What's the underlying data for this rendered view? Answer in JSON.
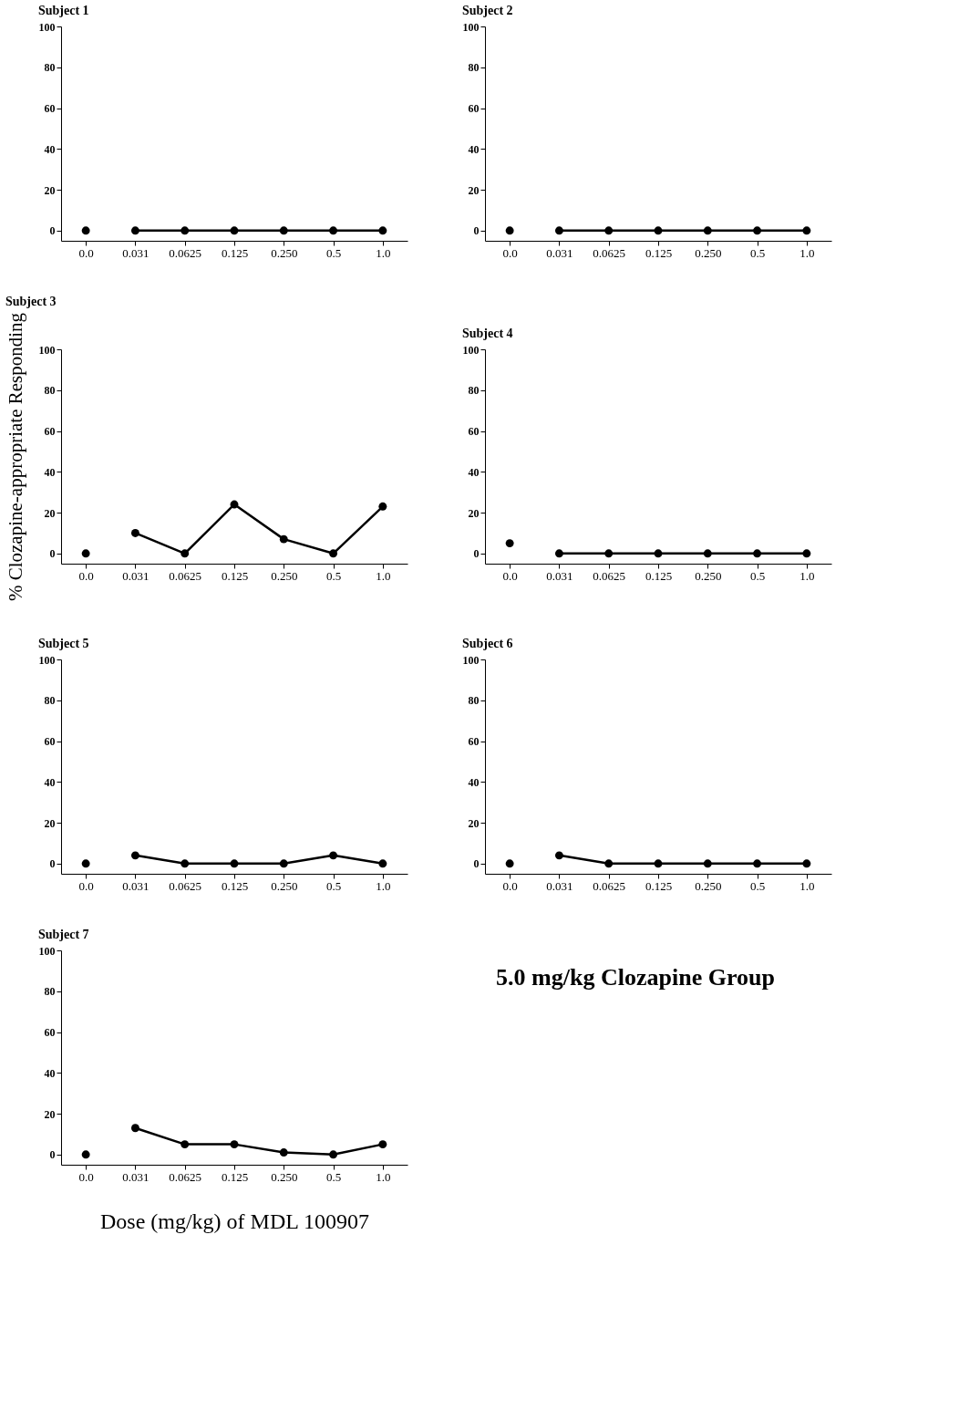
{
  "chart_data": [
    {
      "type": "line",
      "title": "Subject 1",
      "categories": [
        "0.0",
        "0.031",
        "0.0625",
        "0.125",
        "0.250",
        "0.5",
        "1.0"
      ],
      "ylim": [
        -5,
        100
      ],
      "yticks": [
        0,
        20,
        40,
        60,
        80,
        100
      ],
      "grid": false,
      "marker": "circle",
      "series": [
        {
          "type": "scatter",
          "color": "#000000",
          "values": [
            0,
            null,
            null,
            null,
            null,
            null,
            null
          ]
        },
        {
          "type": "line",
          "color": "#000000",
          "values": [
            null,
            0,
            0,
            0,
            0,
            0,
            0
          ]
        }
      ]
    },
    {
      "type": "line",
      "title": "Subject 2",
      "categories": [
        "0.0",
        "0.031",
        "0.0625",
        "0.125",
        "0.250",
        "0.5",
        "1.0"
      ],
      "ylim": [
        -5,
        100
      ],
      "yticks": [
        0,
        20,
        40,
        60,
        80,
        100
      ],
      "grid": false,
      "marker": "circle",
      "series": [
        {
          "type": "scatter",
          "color": "#000000",
          "values": [
            0,
            null,
            null,
            null,
            null,
            null,
            null
          ]
        },
        {
          "type": "line",
          "color": "#000000",
          "values": [
            null,
            0,
            0,
            0,
            0,
            0,
            0
          ]
        }
      ]
    },
    {
      "type": "line",
      "title": "Subject 3",
      "categories": [
        "0.0",
        "0.031",
        "0.0625",
        "0.125",
        "0.250",
        "0.5",
        "1.0"
      ],
      "ylim": [
        -5,
        100
      ],
      "yticks": [
        0,
        20,
        40,
        60,
        80,
        100
      ],
      "grid": false,
      "marker": "circle",
      "ylabel": "% Clozapine-appropriate Responding",
      "series": [
        {
          "type": "scatter",
          "color": "#000000",
          "values": [
            0,
            null,
            null,
            null,
            null,
            null,
            null
          ]
        },
        {
          "type": "line",
          "color": "#000000",
          "values": [
            null,
            10,
            0,
            24,
            7,
            0,
            23
          ]
        }
      ]
    },
    {
      "type": "line",
      "title": "Subject 4",
      "categories": [
        "0.0",
        "0.031",
        "0.0625",
        "0.125",
        "0.250",
        "0.5",
        "1.0"
      ],
      "ylim": [
        -5,
        100
      ],
      "yticks": [
        0,
        20,
        40,
        60,
        80,
        100
      ],
      "grid": false,
      "marker": "circle",
      "series": [
        {
          "type": "scatter",
          "color": "#000000",
          "values": [
            5,
            null,
            null,
            null,
            null,
            null,
            null
          ]
        },
        {
          "type": "line",
          "color": "#000000",
          "values": [
            null,
            0,
            0,
            0,
            0,
            0,
            0
          ]
        }
      ]
    },
    {
      "type": "line",
      "title": "Subject 5",
      "categories": [
        "0.0",
        "0.031",
        "0.0625",
        "0.125",
        "0.250",
        "0.5",
        "1.0"
      ],
      "ylim": [
        -5,
        100
      ],
      "yticks": [
        0,
        20,
        40,
        60,
        80,
        100
      ],
      "grid": false,
      "marker": "circle",
      "series": [
        {
          "type": "scatter",
          "color": "#000000",
          "values": [
            0,
            null,
            null,
            null,
            null,
            null,
            null
          ]
        },
        {
          "type": "line",
          "color": "#000000",
          "values": [
            null,
            4,
            0,
            0,
            0,
            4,
            0
          ]
        }
      ]
    },
    {
      "type": "line",
      "title": "Subject 6",
      "categories": [
        "0.0",
        "0.031",
        "0.0625",
        "0.125",
        "0.250",
        "0.5",
        "1.0"
      ],
      "ylim": [
        -5,
        100
      ],
      "yticks": [
        0,
        20,
        40,
        60,
        80,
        100
      ],
      "grid": false,
      "marker": "circle",
      "series": [
        {
          "type": "scatter",
          "color": "#000000",
          "values": [
            0,
            null,
            null,
            null,
            null,
            null,
            null
          ]
        },
        {
          "type": "line",
          "color": "#000000",
          "values": [
            null,
            4,
            0,
            0,
            0,
            0,
            0
          ]
        }
      ]
    },
    {
      "type": "line",
      "title": "Subject 7",
      "categories": [
        "0.0",
        "0.031",
        "0.0625",
        "0.125",
        "0.250",
        "0.5",
        "1.0"
      ],
      "ylim": [
        -5,
        100
      ],
      "yticks": [
        0,
        20,
        40,
        60,
        80,
        100
      ],
      "grid": false,
      "marker": "circle",
      "xlabel": "Dose (mg/kg) of MDL 100907",
      "series": [
        {
          "type": "scatter",
          "color": "#000000",
          "values": [
            0,
            null,
            null,
            null,
            null,
            null,
            null
          ]
        },
        {
          "type": "line",
          "color": "#000000",
          "values": [
            null,
            13,
            5,
            5,
            1,
            0,
            5
          ]
        }
      ]
    },
    {
      "type": "other",
      "title": "5.0 mg/kg Clozapine Group"
    }
  ]
}
